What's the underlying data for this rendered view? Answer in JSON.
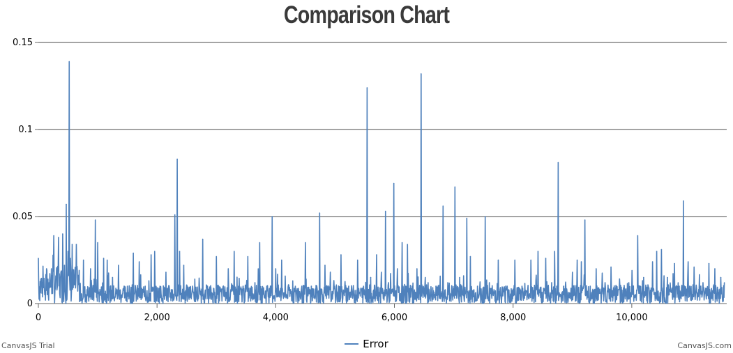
{
  "chart_data": {
    "type": "line",
    "title": "Comparison Chart",
    "xlabel": "",
    "ylabel": "",
    "xlim": [
      0,
      11600
    ],
    "ylim": [
      0,
      0.15
    ],
    "x_ticks": [
      0,
      2000,
      4000,
      6000,
      8000,
      10000
    ],
    "x_tick_labels": [
      "0",
      "2,000",
      "4,000",
      "6,000",
      "8,000",
      "10,000"
    ],
    "y_ticks": [
      0,
      0.05,
      0.1,
      0.15
    ],
    "y_tick_labels": [
      "0",
      "0.05",
      "0.1",
      "0.15"
    ],
    "grid": "horizontal",
    "legend_position": "bottom-center",
    "series": [
      {
        "name": "Error",
        "color": "#4f81bc",
        "points": [
          [
            0,
            0.026
          ],
          [
            60,
            0.006
          ],
          [
            120,
            0.002
          ],
          [
            180,
            0.012
          ],
          [
            220,
            0.02
          ],
          [
            260,
            0.039
          ],
          [
            300,
            0.014
          ],
          [
            340,
            0.038
          ],
          [
            380,
            0.018
          ],
          [
            410,
            0.04
          ],
          [
            440,
            0.022
          ],
          [
            470,
            0.057
          ],
          [
            500,
            0.03
          ],
          [
            520,
            0.139
          ],
          [
            540,
            0.026
          ],
          [
            570,
            0.034
          ],
          [
            600,
            0.012
          ],
          [
            640,
            0.034
          ],
          [
            700,
            0.01
          ],
          [
            760,
            0.025
          ],
          [
            820,
            0.008
          ],
          [
            880,
            0.02
          ],
          [
            940,
            0.014
          ],
          [
            960,
            0.048
          ],
          [
            1000,
            0.035
          ],
          [
            1050,
            0.007
          ],
          [
            1100,
            0.026
          ],
          [
            1160,
            0.025
          ],
          [
            1250,
            0.015
          ],
          [
            1350,
            0.022
          ],
          [
            1500,
            0.01
          ],
          [
            1600,
            0.029
          ],
          [
            1700,
            0.024
          ],
          [
            1800,
            0.01
          ],
          [
            1900,
            0.028
          ],
          [
            1960,
            0.03
          ],
          [
            2050,
            0.01
          ],
          [
            2150,
            0.018
          ],
          [
            2240,
            0.008
          ],
          [
            2300,
            0.051
          ],
          [
            2340,
            0.083
          ],
          [
            2380,
            0.03
          ],
          [
            2450,
            0.022
          ],
          [
            2600,
            0.01
          ],
          [
            2770,
            0.037
          ],
          [
            2850,
            0.01
          ],
          [
            3000,
            0.027
          ],
          [
            3100,
            0.008
          ],
          [
            3200,
            0.02
          ],
          [
            3300,
            0.03
          ],
          [
            3450,
            0.01
          ],
          [
            3530,
            0.027
          ],
          [
            3650,
            0.012
          ],
          [
            3730,
            0.035
          ],
          [
            3850,
            0.01
          ],
          [
            3940,
            0.05
          ],
          [
            4000,
            0.02
          ],
          [
            4100,
            0.025
          ],
          [
            4250,
            0.008
          ],
          [
            4380,
            0.007
          ],
          [
            4500,
            0.035
          ],
          [
            4600,
            0.01
          ],
          [
            4740,
            0.052
          ],
          [
            4830,
            0.022
          ],
          [
            4950,
            0.007
          ],
          [
            5100,
            0.028
          ],
          [
            5230,
            0.01
          ],
          [
            5380,
            0.025
          ],
          [
            5450,
            0.008
          ],
          [
            5540,
            0.124
          ],
          [
            5600,
            0.015
          ],
          [
            5700,
            0.028
          ],
          [
            5780,
            0.018
          ],
          [
            5850,
            0.053
          ],
          [
            5900,
            0.012
          ],
          [
            5990,
            0.069
          ],
          [
            6050,
            0.02
          ],
          [
            6130,
            0.035
          ],
          [
            6220,
            0.034
          ],
          [
            6300,
            0.01
          ],
          [
            6380,
            0.02
          ],
          [
            6450,
            0.132
          ],
          [
            6520,
            0.015
          ],
          [
            6700,
            0.01
          ],
          [
            6820,
            0.056
          ],
          [
            6900,
            0.012
          ],
          [
            7020,
            0.067
          ],
          [
            7100,
            0.015
          ],
          [
            7220,
            0.049
          ],
          [
            7280,
            0.027
          ],
          [
            7400,
            0.01
          ],
          [
            7530,
            0.05
          ],
          [
            7600,
            0.012
          ],
          [
            7750,
            0.025
          ],
          [
            7900,
            0.01
          ],
          [
            8030,
            0.025
          ],
          [
            8150,
            0.01
          ],
          [
            8300,
            0.025
          ],
          [
            8420,
            0.03
          ],
          [
            8550,
            0.026
          ],
          [
            8650,
            0.012
          ],
          [
            8700,
            0.03
          ],
          [
            8760,
            0.081
          ],
          [
            8850,
            0.01
          ],
          [
            9000,
            0.018
          ],
          [
            9080,
            0.025
          ],
          [
            9150,
            0.024
          ],
          [
            9210,
            0.048
          ],
          [
            9300,
            0.01
          ],
          [
            9400,
            0.02
          ],
          [
            9550,
            0.012
          ],
          [
            9650,
            0.021
          ],
          [
            9800,
            0.01
          ],
          [
            9950,
            0.012
          ],
          [
            10100,
            0.039
          ],
          [
            10200,
            0.015
          ],
          [
            10350,
            0.024
          ],
          [
            10420,
            0.03
          ],
          [
            10500,
            0.031
          ],
          [
            10600,
            0.015
          ],
          [
            10720,
            0.023
          ],
          [
            10800,
            0.01
          ],
          [
            10870,
            0.059
          ],
          [
            10950,
            0.024
          ],
          [
            11050,
            0.021
          ],
          [
            11200,
            0.012
          ],
          [
            11300,
            0.023
          ],
          [
            11400,
            0.02
          ],
          [
            11500,
            0.015
          ],
          [
            11560,
            0.012
          ]
        ]
      }
    ]
  },
  "legend": {
    "label": "Error"
  },
  "footer": {
    "left": "CanvasJS Trial",
    "right": "CanvasJS.com"
  }
}
